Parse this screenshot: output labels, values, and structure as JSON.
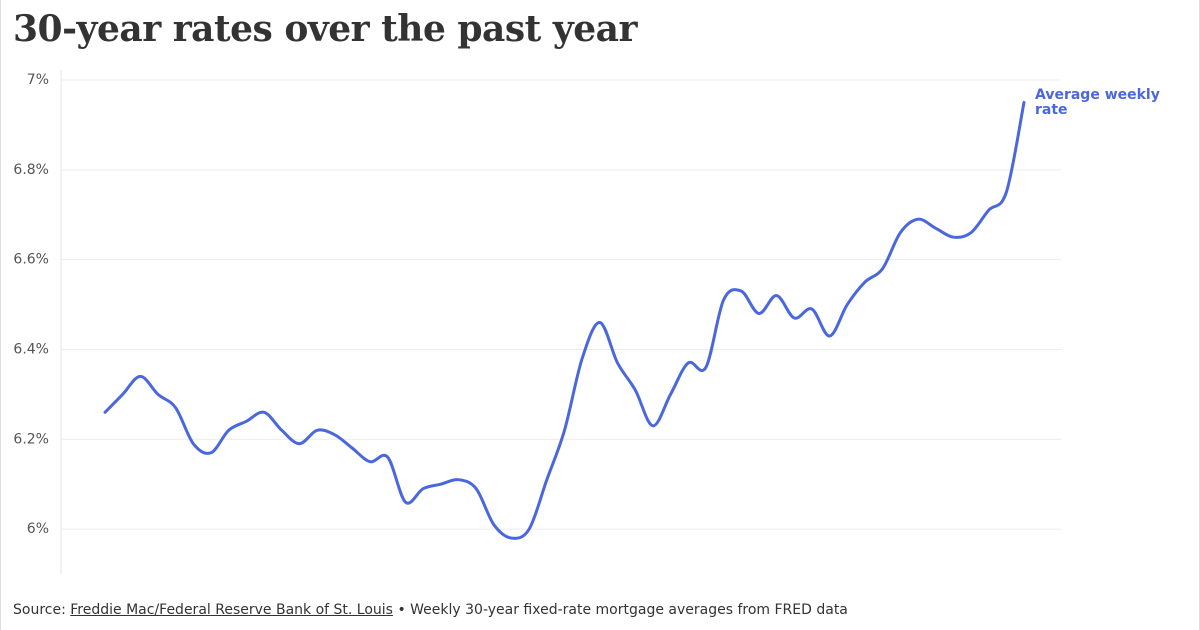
{
  "chart_data": {
    "type": "line",
    "title": "30-year rates over the past year",
    "series": [
      {
        "name": "Average weekly rate",
        "color": "#4a67de",
        "values": [
          6.26,
          6.3,
          6.34,
          6.3,
          6.27,
          6.19,
          6.17,
          6.22,
          6.24,
          6.26,
          6.22,
          6.19,
          6.22,
          6.21,
          6.18,
          6.15,
          6.16,
          6.06,
          6.09,
          6.1,
          6.11,
          6.09,
          6.01,
          5.98,
          6.0,
          6.11,
          6.22,
          6.38,
          6.46,
          6.37,
          6.31,
          6.23,
          6.3,
          6.37,
          6.36,
          6.51,
          6.53,
          6.48,
          6.52,
          6.47,
          6.49,
          6.43,
          6.5,
          6.55,
          6.58,
          6.66,
          6.69,
          6.67,
          6.65,
          6.66,
          6.71,
          6.75,
          6.95
        ]
      }
    ],
    "ylim": [
      5.9,
      7
    ],
    "yticks": [
      {
        "value": 6,
        "label": "6%"
      },
      {
        "value": 6.2,
        "label": "6.2%"
      },
      {
        "value": 6.4,
        "label": "6.4%"
      },
      {
        "value": 6.6,
        "label": "6.6%"
      },
      {
        "value": 6.8,
        "label": "6.8%"
      },
      {
        "value": 7,
        "label": "7%"
      }
    ],
    "grid": true,
    "source": {
      "label": "Source:",
      "link": "Freddie Mac/Federal Reserve Bank of St. Louis",
      "note": "• Weekly 30-year fixed-rate mortgage averages from FRED data"
    }
  }
}
